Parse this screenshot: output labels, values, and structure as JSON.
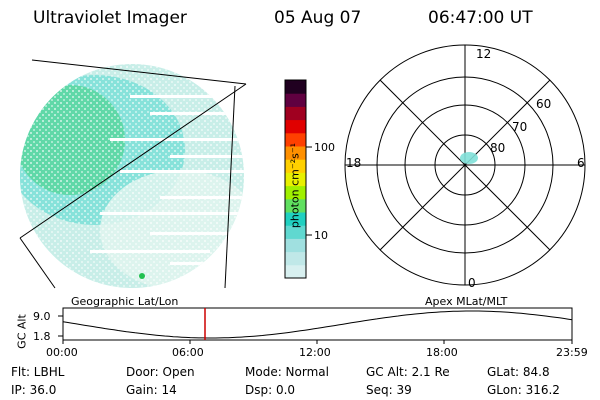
{
  "header": {
    "instrument": "Ultraviolet Imager",
    "date": "05 Aug 07",
    "time": "06:47:00 UT"
  },
  "colorbar": {
    "label": "photon cm⁻²s⁻¹",
    "ticks": [
      "100",
      "10"
    ],
    "colors": [
      "#d8f0f0",
      "#c0e8e8",
      "#a0e0e0",
      "#60d8d0",
      "#20d0c0",
      "#60e060",
      "#a0f000",
      "#e8f000",
      "#ffd000",
      "#ff9000",
      "#ff4000",
      "#e00000",
      "#a00020",
      "#600040",
      "#200020"
    ]
  },
  "earth_image": {
    "label": "Geographic Lat/Lon",
    "colors": {
      "dim": "#d8f0ec",
      "mid": "#7fe0d8",
      "bright": "#40d080",
      "peak": "#20c050"
    }
  },
  "polar_plot": {
    "label": "Apex MLat/MLT",
    "mlt_labels": {
      "top": "12",
      "left": "18",
      "right": "6",
      "bottom": "0"
    },
    "lat_labels": [
      "60",
      "70",
      "80"
    ]
  },
  "timeline": {
    "y_axis_label": "GC Alt",
    "y_ticks": [
      "9.0",
      "1.8"
    ],
    "x_ticks": [
      "00:00",
      "06:00",
      "12:00",
      "18:00",
      "23:59"
    ],
    "current_time_marker_color": "#cc0000"
  },
  "info": {
    "flt": "Flt: LBHL",
    "door": "Door: Open",
    "mode": "Mode: Normal",
    "gc_alt": "GC Alt: 2.1 Re",
    "glat": "GLat:  84.8",
    "ip": "IP: 36.0",
    "gain": "Gain: 14",
    "dsp": "Dsp:     0.0",
    "seq": "Seq: 39",
    "glon": "GLon: 316.2"
  }
}
